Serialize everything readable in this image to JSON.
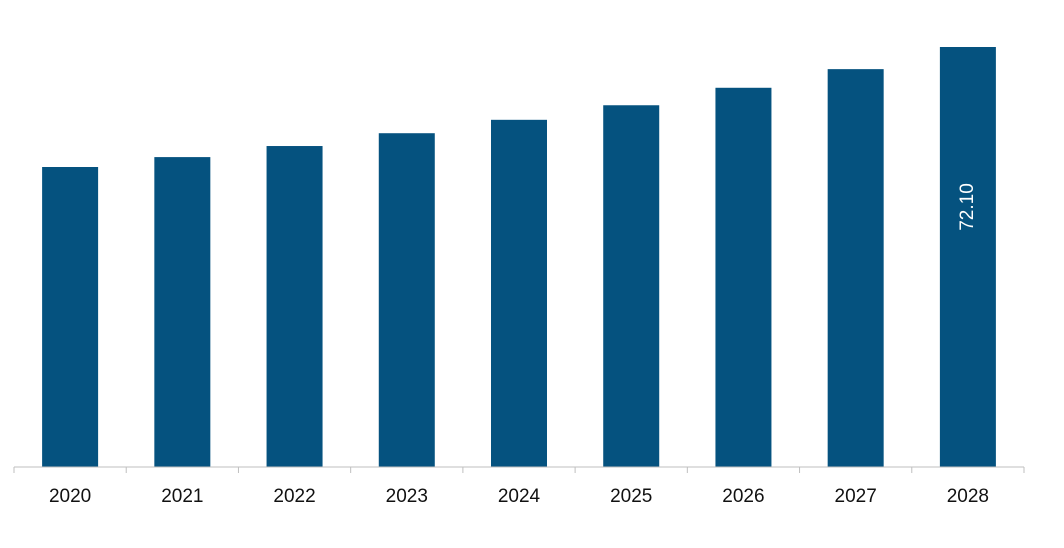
{
  "chart_data": {
    "type": "bar",
    "categories": [
      "2020",
      "2021",
      "2022",
      "2023",
      "2024",
      "2025",
      "2026",
      "2027",
      "2028"
    ],
    "values": [
      51.5,
      53.2,
      55.1,
      57.3,
      59.6,
      62.1,
      65.1,
      68.3,
      72.1
    ],
    "value_labels": [
      null,
      null,
      null,
      null,
      null,
      null,
      null,
      null,
      "72.10"
    ],
    "color": "#05527f"
  }
}
